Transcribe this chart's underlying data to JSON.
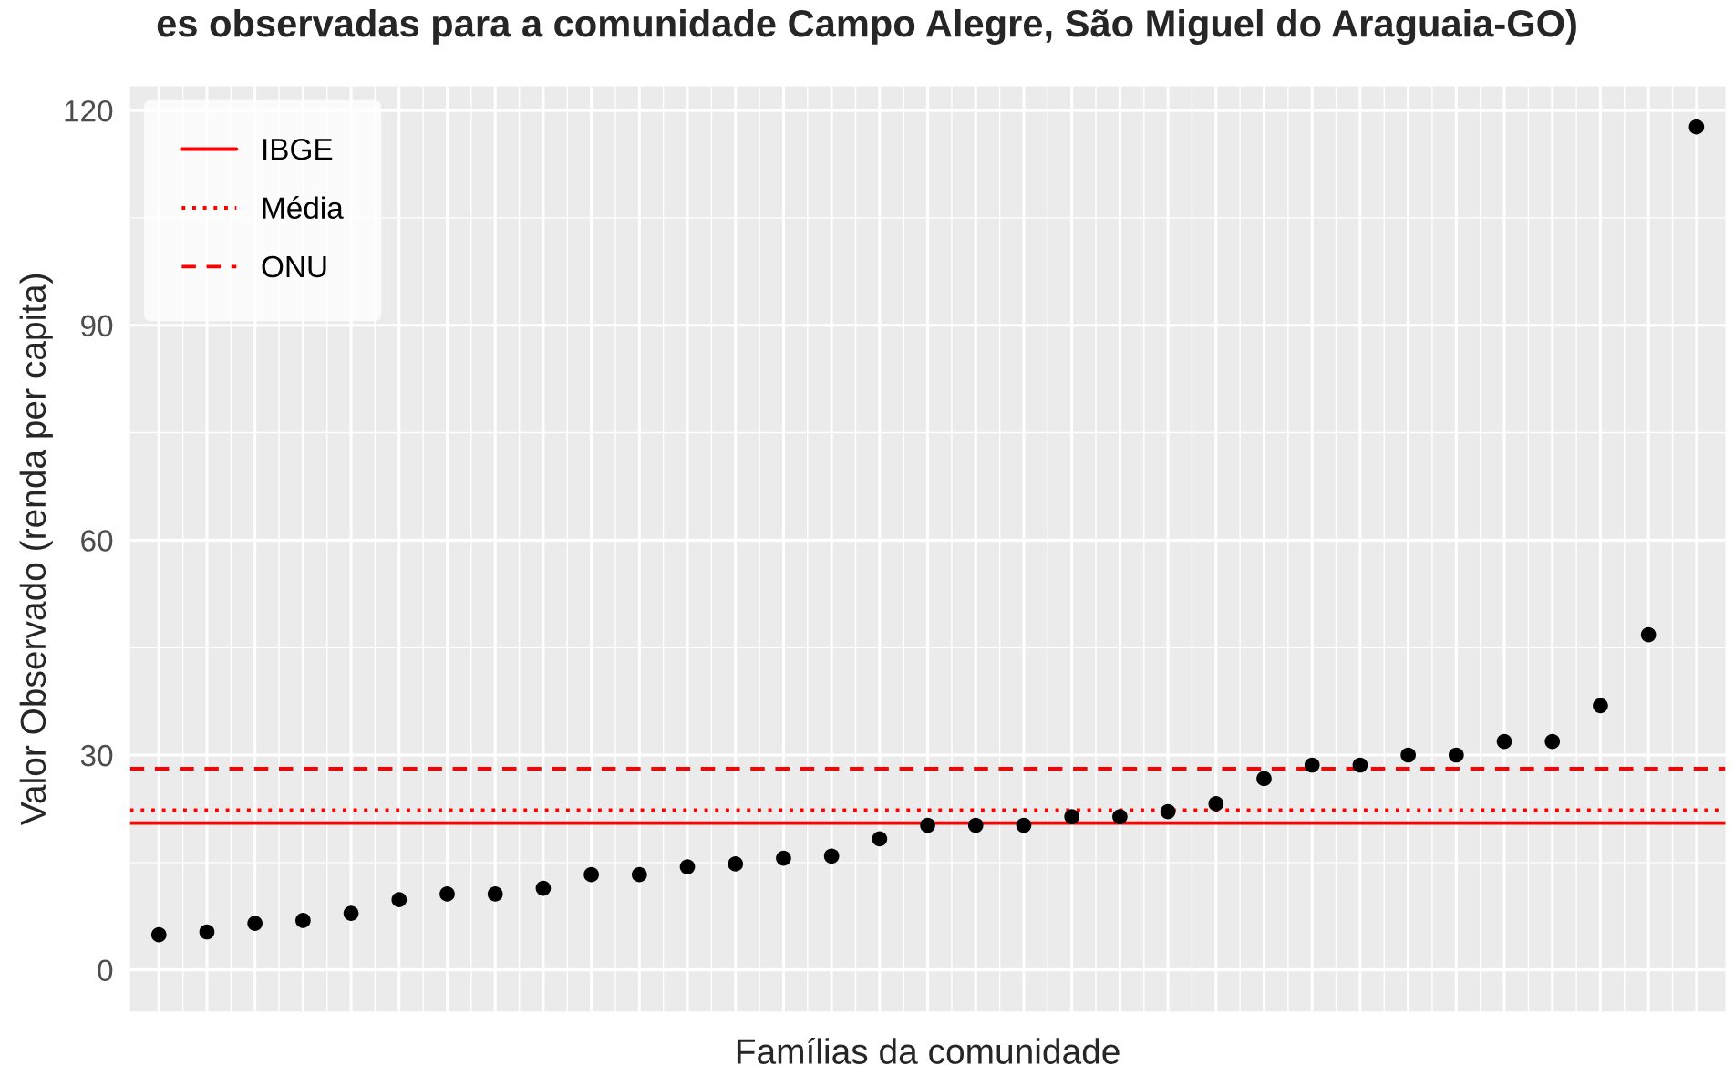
{
  "chart_data": {
    "type": "scatter",
    "title": "es observadas para a comunidade Campo Alegre, São Miguel do Araguaia-GO)",
    "xlabel": "Famílias da comunidade",
    "ylabel": "Valor Observado (renda per capita)",
    "categories": [
      null,
      null,
      null,
      null,
      null,
      null,
      null,
      null,
      null,
      null,
      null,
      null,
      null,
      null,
      null,
      null,
      null,
      null,
      null,
      null,
      null,
      null,
      null,
      null,
      null,
      null,
      null,
      null,
      null,
      null,
      null,
      null,
      null
    ],
    "series": [
      {
        "color": "#000000",
        "values": [
          4.9,
          5.3,
          6.5,
          6.9,
          7.9,
          9.8,
          10.6,
          10.6,
          11.4,
          13.3,
          13.3,
          14.4,
          14.8,
          15.6,
          15.9,
          18.3,
          20.2,
          20.2,
          20.2,
          21.4,
          21.4,
          22.1,
          23.2,
          26.7,
          28.6,
          28.6,
          30.0,
          30.0,
          31.9,
          31.9,
          36.9,
          46.8,
          117.7
        ]
      }
    ],
    "ylim": [
      -5.8,
      123.4
    ],
    "yticks": [
      0,
      30,
      60,
      90,
      120
    ],
    "ref_lines": [
      {
        "axis": "y",
        "value": 20.5,
        "label": "IBGE",
        "color": "#ff0000",
        "line_style": "solid"
      },
      {
        "axis": "y",
        "value": 22.3,
        "label": "Média",
        "color": "#ff0000",
        "line_style": "dotted"
      },
      {
        "axis": "y",
        "value": 28.1,
        "label": "ONU",
        "color": "#ff0000",
        "line_style": "dashed"
      }
    ],
    "grid": true,
    "legend": "top left",
    "marker": "circle"
  }
}
